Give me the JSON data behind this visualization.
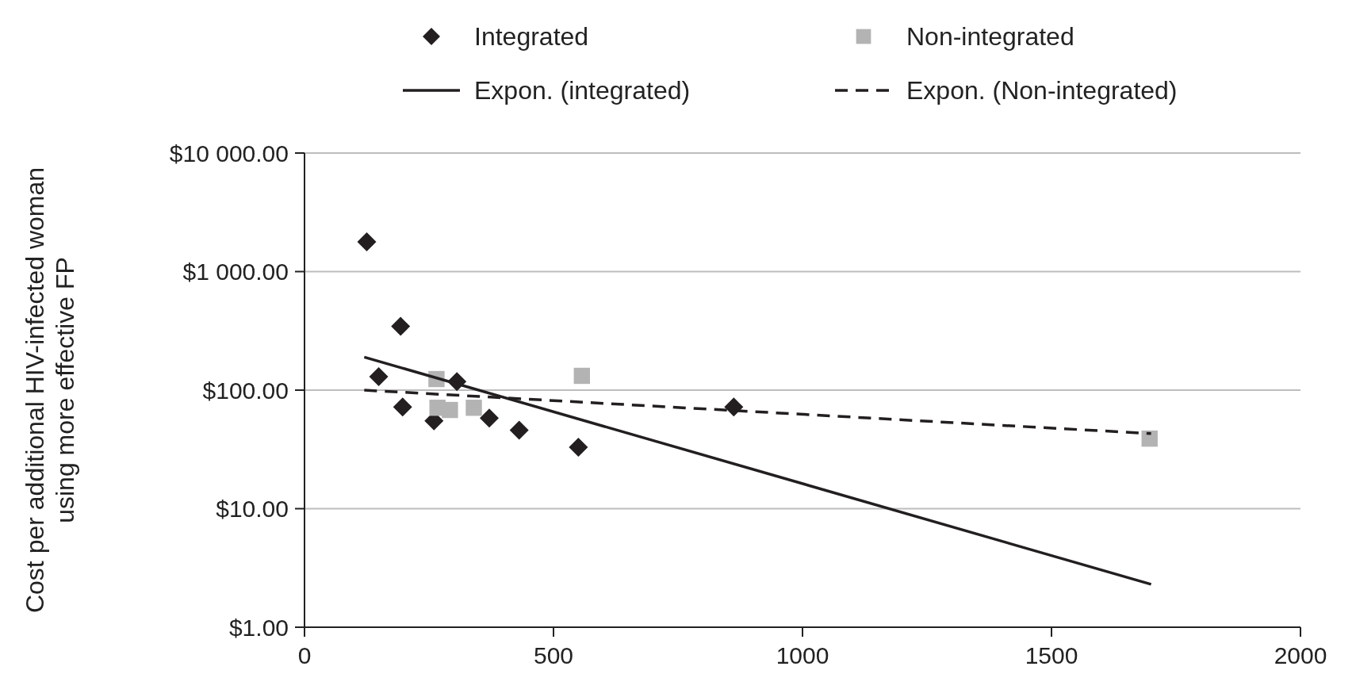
{
  "chart_data": {
    "type": "scatter",
    "ylabel": "Cost per additional HIV-infected woman\nusing more effective FP",
    "log": "y",
    "grid": "y",
    "legend": "top",
    "xlim": [
      0,
      2000
    ],
    "xticks": [
      0,
      500,
      1000,
      1500,
      2000
    ],
    "ylim": [
      1,
      10000
    ],
    "yticks": [
      {
        "value": 1,
        "label": "$1.00"
      },
      {
        "value": 10,
        "label": "$10.00"
      },
      {
        "value": 100,
        "label": "$100.00"
      },
      {
        "value": 1000,
        "label": "$1 000.00"
      },
      {
        "value": 10000,
        "label": "$10 000.00"
      }
    ],
    "series": [
      {
        "name": "Integrated",
        "marker": "diamond",
        "color": "#231f20",
        "x": [
          125,
          193,
          149,
          197,
          260,
          306,
          371,
          431,
          550,
          862
        ],
        "values": [
          1780,
          345,
          130,
          72,
          55,
          118,
          58,
          46,
          33,
          72
        ]
      },
      {
        "name": "Non-integrated",
        "marker": "square",
        "color": "#b3b3b3",
        "x": [
          265,
          267,
          292,
          340,
          557,
          1697
        ],
        "values": [
          124,
          71,
          68,
          71,
          132,
          39
        ]
      },
      {
        "name": "Expon. (integrated)",
        "type": "line",
        "line_style": "solid",
        "color": "#231f20",
        "x": [
          120,
          1700
        ],
        "values": [
          190,
          2.3
        ]
      },
      {
        "name": "Expon. (Non-integrated)",
        "type": "line",
        "line_style": "dashed",
        "color": "#231f20",
        "x": [
          120,
          1700
        ],
        "values": [
          100,
          43
        ]
      }
    ]
  }
}
